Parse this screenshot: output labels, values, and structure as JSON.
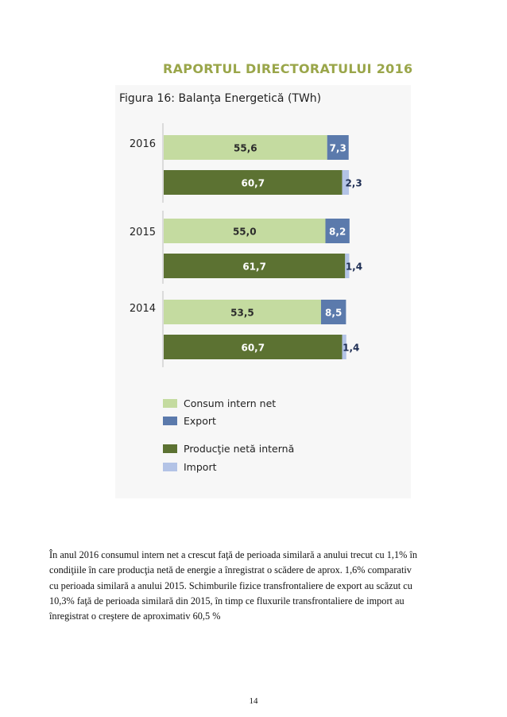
{
  "report_title": "RAPORTUL DIRECTORATULUI  2016",
  "figure_title": "Figura 16: Balanţa Energetică (TWh)",
  "colors": {
    "consum": "#c4dba0",
    "export": "#5b7aac",
    "productie": "#5c7232",
    "import": "#b3c3e6"
  },
  "chart_data": {
    "type": "bar",
    "orientation": "horizontal",
    "stacked": true,
    "title": "Figura 16: Balanţa Energetică (TWh)",
    "categories": [
      "2016",
      "2015",
      "2014"
    ],
    "bars": [
      {
        "category": "2016",
        "segments": [
          {
            "series": "Consum intern net",
            "value": 55.6,
            "label": "55,6"
          },
          {
            "series": "Export",
            "value": 7.3,
            "label": "7,3"
          }
        ]
      },
      {
        "category": "2016",
        "segments": [
          {
            "series": "Producţie netă internă",
            "value": 60.7,
            "label": "60,7"
          },
          {
            "series": "Import",
            "value": 2.3,
            "label": "2,3"
          }
        ]
      },
      {
        "category": "2015",
        "segments": [
          {
            "series": "Consum intern net",
            "value": 55.0,
            "label": "55,0"
          },
          {
            "series": "Export",
            "value": 8.2,
            "label": "8,2"
          }
        ]
      },
      {
        "category": "2015",
        "segments": [
          {
            "series": "Producţie netă internă",
            "value": 61.7,
            "label": "61,7"
          },
          {
            "series": "Import",
            "value": 1.4,
            "label": "1,4"
          }
        ]
      },
      {
        "category": "2014",
        "segments": [
          {
            "series": "Consum intern net",
            "value": 53.5,
            "label": "53,5"
          },
          {
            "series": "Export",
            "value": 8.5,
            "label": "8,5"
          }
        ]
      },
      {
        "category": "2014",
        "segments": [
          {
            "series": "Producţie netă internă",
            "value": 60.7,
            "label": "60,7"
          },
          {
            "series": "Import",
            "value": 1.4,
            "label": "1,4"
          }
        ]
      }
    ],
    "legend": [
      {
        "name": "Consum intern net",
        "color": "#c4dba0"
      },
      {
        "name": "Export",
        "color": "#5b7aac"
      },
      {
        "name": "Producţie netă internă",
        "color": "#5c7232"
      },
      {
        "name": "Import",
        "color": "#b3c3e6"
      }
    ],
    "legend_position": "bottom-left",
    "grid": false
  },
  "paragraph_lines": [
    "În anul 2016 consumul intern net a crescut faţă de perioada similară a anului trecut cu 1,1% în",
    "condiţiile în care producţia netă de energie a înregistrat o scădere de aprox. 1,6% comparativ",
    "cu perioada similară a anului 2015. Schimburile fizice transfrontaliere de export au scăzut cu",
    "10,3% faţă de perioada similară din 2015, în timp ce fluxurile transfrontaliere de import au",
    "înregistrat o creştere de aproximativ 60,5 %"
  ],
  "page_number": "14"
}
